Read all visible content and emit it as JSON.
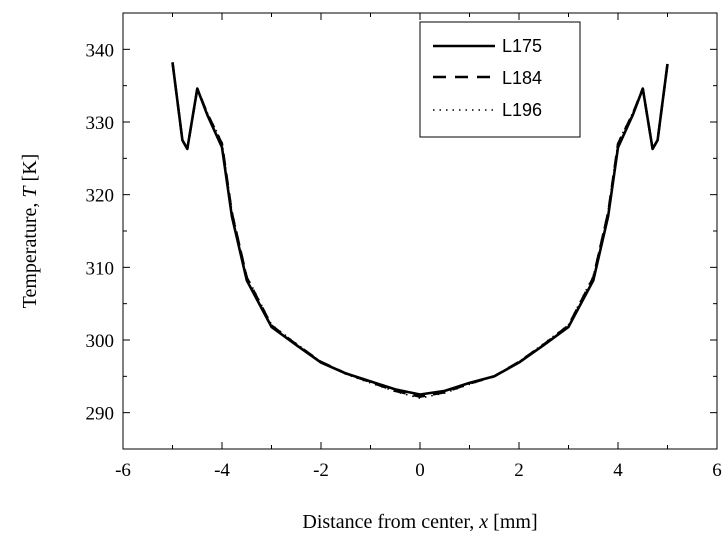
{
  "chart_data": {
    "type": "line",
    "xlabel": {
      "prefix": "Distance from center, ",
      "var": "x",
      "suffix": " [mm]"
    },
    "ylabel": {
      "prefix": "Temperature, ",
      "var": "T",
      "suffix": " [K]"
    },
    "xlim": [
      -6,
      6
    ],
    "ylim": [
      285,
      345
    ],
    "xticks": [
      -6,
      -4,
      -2,
      0,
      2,
      4,
      6
    ],
    "yticks": [
      290,
      300,
      310,
      320,
      330,
      340
    ],
    "x_tick_labels": [
      "-6",
      "-4",
      "-2",
      "0",
      "2",
      "4",
      "6"
    ],
    "y_tick_labels": [
      "290",
      "300",
      "310",
      "320",
      "330",
      "340"
    ],
    "grid": false,
    "legend_position": "top-right",
    "series": [
      {
        "name": "L175",
        "style": "solid",
        "x": [
          -5.0,
          -4.8,
          -4.7,
          -4.5,
          -4.3,
          -4.0,
          -3.8,
          -3.5,
          -3.0,
          -2.5,
          -2.0,
          -1.5,
          -1.0,
          -0.5,
          0.0,
          0.5,
          1.0,
          1.5,
          2.0,
          2.5,
          3.0,
          3.5,
          3.8,
          4.0,
          4.3,
          4.5,
          4.7,
          4.8,
          5.0
        ],
        "values": [
          338.2,
          327.5,
          326.3,
          334.6,
          331.0,
          326.5,
          317.0,
          308.2,
          301.8,
          299.3,
          296.9,
          295.4,
          294.3,
          293.2,
          292.5,
          293.0,
          294.1,
          295.0,
          296.9,
          299.3,
          301.8,
          308.2,
          317.0,
          326.5,
          331.0,
          334.6,
          326.3,
          327.5,
          338.0
        ]
      },
      {
        "name": "L184",
        "style": "dashed",
        "x": [
          -5.0,
          -4.8,
          -4.7,
          -4.5,
          -4.3,
          -4.0,
          -3.8,
          -3.5,
          -3.0,
          -2.5,
          -2.0,
          -1.5,
          -1.0,
          -0.5,
          0.0,
          0.5,
          1.0,
          1.5,
          2.0,
          2.5,
          3.0,
          3.5,
          3.8,
          4.0,
          4.3,
          4.5,
          4.7,
          4.8,
          5.0
        ],
        "values": [
          338.2,
          327.5,
          326.3,
          334.6,
          331.2,
          327.0,
          317.5,
          308.6,
          302.0,
          299.4,
          297.0,
          295.4,
          294.2,
          293.0,
          292.2,
          292.8,
          294.0,
          295.0,
          297.0,
          299.4,
          302.0,
          308.6,
          317.5,
          327.0,
          331.2,
          334.6,
          326.3,
          327.5,
          338.0
        ]
      },
      {
        "name": "L196",
        "style": "dotted",
        "x": [
          -5.0,
          -4.8,
          -4.7,
          -4.5,
          -4.3,
          -4.0,
          -3.8,
          -3.5,
          -3.0,
          -2.5,
          -2.0,
          -1.5,
          -1.0,
          -0.5,
          0.0,
          0.5,
          1.0,
          1.5,
          2.0,
          2.5,
          3.0,
          3.5,
          3.8,
          4.0,
          4.3,
          4.5,
          4.7,
          4.8,
          5.0
        ],
        "values": [
          338.2,
          327.5,
          326.3,
          334.6,
          331.3,
          327.2,
          317.8,
          308.8,
          302.1,
          299.5,
          297.0,
          295.3,
          294.1,
          292.9,
          292.0,
          292.7,
          293.9,
          295.0,
          297.0,
          299.5,
          302.1,
          308.8,
          317.8,
          327.2,
          331.3,
          334.6,
          326.3,
          327.5,
          338.0
        ]
      }
    ]
  }
}
